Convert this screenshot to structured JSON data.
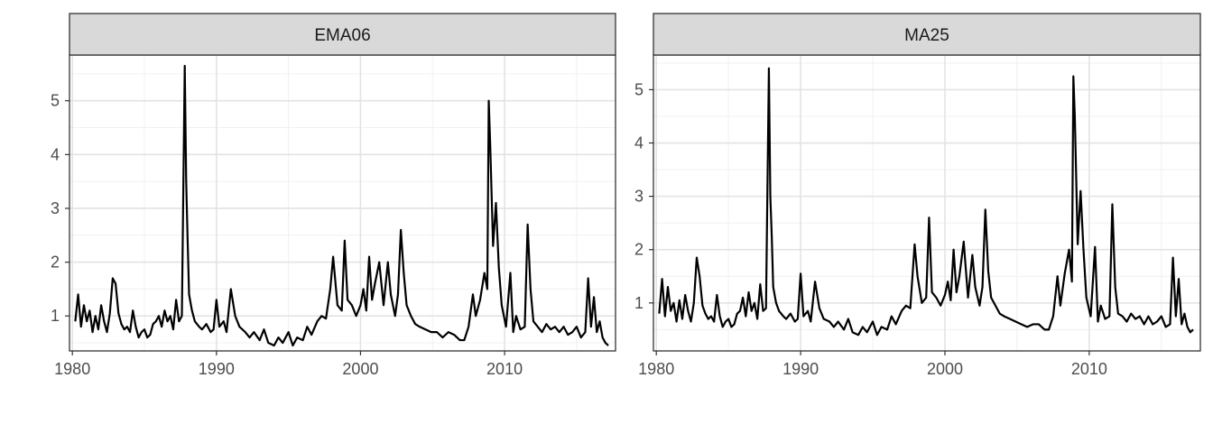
{
  "chart_data": [
    {
      "type": "line",
      "title": "EMA06",
      "xlabel": "",
      "ylabel": "",
      "xlim": [
        1979.8,
        2017.7
      ],
      "ylim": [
        0.35,
        5.85
      ],
      "x_ticks": [
        1980,
        1990,
        2000,
        2010
      ],
      "y_ticks": [
        1,
        2,
        3,
        4,
        5
      ],
      "grid": true,
      "series": [
        {
          "color": "#000000",
          "x": [
            1980.2,
            1980.4,
            1980.6,
            1980.8,
            1981.0,
            1981.2,
            1981.4,
            1981.6,
            1981.8,
            1982.0,
            1982.2,
            1982.4,
            1982.6,
            1982.8,
            1983.0,
            1983.2,
            1983.4,
            1983.6,
            1983.8,
            1984.0,
            1984.2,
            1984.4,
            1984.6,
            1984.8,
            1985.0,
            1985.2,
            1985.4,
            1985.6,
            1985.8,
            1986.0,
            1986.2,
            1986.4,
            1986.6,
            1986.8,
            1987.0,
            1987.2,
            1987.4,
            1987.6,
            1987.8,
            1987.9,
            1988.0,
            1988.1,
            1988.3,
            1988.5,
            1988.8,
            1989.0,
            1989.3,
            1989.6,
            1989.8,
            1990.0,
            1990.2,
            1990.5,
            1990.7,
            1991.0,
            1991.3,
            1991.6,
            1992.0,
            1992.3,
            1992.6,
            1993.0,
            1993.3,
            1993.6,
            1994.0,
            1994.3,
            1994.6,
            1995.0,
            1995.3,
            1995.6,
            1996.0,
            1996.3,
            1996.6,
            1997.0,
            1997.3,
            1997.6,
            1997.9,
            1998.1,
            1998.4,
            1998.7,
            1998.9,
            1999.1,
            1999.4,
            1999.7,
            2000.0,
            2000.2,
            2000.4,
            2000.6,
            2000.8,
            2001.0,
            2001.3,
            2001.6,
            2001.9,
            2002.1,
            2002.4,
            2002.6,
            2002.8,
            2003.0,
            2003.2,
            2003.5,
            2003.8,
            2004.1,
            2004.5,
            2004.9,
            2005.3,
            2005.7,
            2006.1,
            2006.5,
            2006.9,
            2007.2,
            2007.5,
            2007.8,
            2008.0,
            2008.3,
            2008.6,
            2008.8,
            2008.9,
            2009.0,
            2009.2,
            2009.4,
            2009.6,
            2009.8,
            2010.1,
            2010.4,
            2010.6,
            2010.8,
            2011.1,
            2011.4,
            2011.6,
            2011.8,
            2012.0,
            2012.3,
            2012.6,
            2012.9,
            2013.2,
            2013.5,
            2013.8,
            2014.1,
            2014.4,
            2014.7,
            2015.0,
            2015.3,
            2015.6,
            2015.8,
            2016.0,
            2016.2,
            2016.4,
            2016.6,
            2016.8,
            2017.0,
            2017.2
          ],
          "y": [
            0.9,
            1.4,
            0.8,
            1.2,
            0.9,
            1.1,
            0.7,
            1.0,
            0.75,
            1.2,
            0.9,
            0.7,
            1.05,
            1.7,
            1.6,
            1.05,
            0.85,
            0.75,
            0.8,
            0.7,
            1.1,
            0.8,
            0.6,
            0.7,
            0.75,
            0.6,
            0.65,
            0.85,
            0.9,
            1.0,
            0.8,
            1.1,
            0.9,
            1.0,
            0.75,
            1.3,
            0.9,
            1.0,
            5.65,
            3.5,
            2.4,
            1.4,
            1.1,
            0.9,
            0.8,
            0.75,
            0.85,
            0.7,
            0.75,
            1.3,
            0.8,
            0.9,
            0.7,
            1.5,
            1.0,
            0.8,
            0.7,
            0.6,
            0.7,
            0.55,
            0.75,
            0.5,
            0.45,
            0.6,
            0.5,
            0.7,
            0.45,
            0.6,
            0.55,
            0.8,
            0.65,
            0.9,
            1.0,
            0.95,
            1.5,
            2.1,
            1.2,
            1.1,
            2.4,
            1.3,
            1.2,
            1.0,
            1.2,
            1.5,
            1.1,
            2.1,
            1.3,
            1.6,
            2.0,
            1.2,
            2.0,
            1.4,
            1.0,
            1.4,
            2.6,
            1.8,
            1.2,
            1.0,
            0.85,
            0.8,
            0.75,
            0.7,
            0.7,
            0.6,
            0.7,
            0.65,
            0.55,
            0.55,
            0.8,
            1.4,
            1.0,
            1.3,
            1.8,
            1.5,
            5.0,
            4.2,
            2.3,
            3.1,
            1.9,
            1.2,
            0.8,
            1.8,
            0.7,
            1.0,
            0.75,
            0.8,
            2.7,
            1.5,
            0.9,
            0.8,
            0.7,
            0.85,
            0.75,
            0.8,
            0.7,
            0.8,
            0.65,
            0.7,
            0.8,
            0.6,
            0.7,
            1.7,
            0.8,
            1.35,
            0.7,
            0.9,
            0.6,
            0.5,
            0.45
          ]
        }
      ]
    },
    {
      "type": "line",
      "title": "MA25",
      "xlabel": "",
      "ylabel": "",
      "xlim": [
        1979.8,
        2017.7
      ],
      "ylim": [
        0.1,
        5.65
      ],
      "x_ticks": [
        1980,
        1990,
        2000,
        2010
      ],
      "y_ticks": [
        1,
        2,
        3,
        4,
        5
      ],
      "grid": true,
      "series": [
        {
          "color": "#000000",
          "x": [
            1980.2,
            1980.4,
            1980.6,
            1980.8,
            1981.0,
            1981.2,
            1981.4,
            1981.6,
            1981.8,
            1982.0,
            1982.2,
            1982.4,
            1982.6,
            1982.8,
            1983.0,
            1983.2,
            1983.4,
            1983.6,
            1983.8,
            1984.0,
            1984.2,
            1984.4,
            1984.6,
            1984.8,
            1985.0,
            1985.2,
            1985.4,
            1985.6,
            1985.8,
            1986.0,
            1986.2,
            1986.4,
            1986.6,
            1986.8,
            1987.0,
            1987.2,
            1987.4,
            1987.6,
            1987.8,
            1987.9,
            1988.0,
            1988.1,
            1988.3,
            1988.5,
            1988.8,
            1989.0,
            1989.3,
            1989.6,
            1989.8,
            1990.0,
            1990.2,
            1990.5,
            1990.7,
            1991.0,
            1991.3,
            1991.6,
            1992.0,
            1992.3,
            1992.6,
            1993.0,
            1993.3,
            1993.6,
            1994.0,
            1994.3,
            1994.6,
            1995.0,
            1995.3,
            1995.6,
            1996.0,
            1996.3,
            1996.6,
            1997.0,
            1997.3,
            1997.6,
            1997.9,
            1998.1,
            1998.4,
            1998.7,
            1998.9,
            1999.1,
            1999.4,
            1999.7,
            2000.0,
            2000.2,
            2000.4,
            2000.6,
            2000.8,
            2001.0,
            2001.3,
            2001.6,
            2001.9,
            2002.1,
            2002.4,
            2002.6,
            2002.8,
            2003.0,
            2003.2,
            2003.5,
            2003.8,
            2004.1,
            2004.5,
            2004.9,
            2005.3,
            2005.7,
            2006.1,
            2006.5,
            2006.9,
            2007.2,
            2007.5,
            2007.8,
            2008.0,
            2008.3,
            2008.6,
            2008.8,
            2008.9,
            2009.0,
            2009.2,
            2009.4,
            2009.6,
            2009.8,
            2010.1,
            2010.4,
            2010.6,
            2010.8,
            2011.1,
            2011.4,
            2011.6,
            2011.8,
            2012.0,
            2012.3,
            2012.6,
            2012.9,
            2013.2,
            2013.5,
            2013.8,
            2014.1,
            2014.4,
            2014.7,
            2015.0,
            2015.3,
            2015.6,
            2015.8,
            2016.0,
            2016.2,
            2016.4,
            2016.6,
            2016.8,
            2017.0,
            2017.2
          ],
          "y": [
            0.8,
            1.45,
            0.75,
            1.3,
            0.85,
            1.0,
            0.65,
            1.05,
            0.7,
            1.15,
            0.85,
            0.65,
            1.0,
            1.85,
            1.5,
            0.95,
            0.8,
            0.7,
            0.75,
            0.65,
            1.15,
            0.75,
            0.55,
            0.65,
            0.7,
            0.55,
            0.6,
            0.8,
            0.85,
            1.1,
            0.75,
            1.2,
            0.85,
            1.0,
            0.7,
            1.35,
            0.85,
            0.9,
            5.4,
            3.0,
            2.25,
            1.3,
            1.0,
            0.85,
            0.75,
            0.7,
            0.8,
            0.65,
            0.7,
            1.55,
            0.75,
            0.85,
            0.65,
            1.4,
            0.9,
            0.7,
            0.65,
            0.55,
            0.65,
            0.5,
            0.7,
            0.45,
            0.4,
            0.55,
            0.45,
            0.65,
            0.4,
            0.55,
            0.5,
            0.75,
            0.6,
            0.85,
            0.95,
            0.9,
            2.1,
            1.5,
            1.0,
            1.1,
            2.6,
            1.2,
            1.1,
            0.95,
            1.15,
            1.4,
            1.05,
            2.0,
            1.2,
            1.5,
            2.15,
            1.1,
            1.9,
            1.3,
            0.95,
            1.3,
            2.75,
            1.6,
            1.1,
            0.95,
            0.8,
            0.75,
            0.7,
            0.65,
            0.6,
            0.55,
            0.6,
            0.6,
            0.5,
            0.5,
            0.75,
            1.5,
            0.95,
            1.55,
            2.0,
            1.4,
            5.25,
            4.5,
            2.1,
            3.1,
            2.0,
            1.1,
            0.75,
            2.05,
            0.65,
            0.95,
            0.7,
            0.75,
            2.85,
            1.3,
            0.8,
            0.75,
            0.65,
            0.8,
            0.7,
            0.75,
            0.6,
            0.75,
            0.6,
            0.65,
            0.75,
            0.55,
            0.6,
            1.85,
            0.75,
            1.45,
            0.6,
            0.8,
            0.55,
            0.45,
            0.5
          ]
        }
      ]
    }
  ]
}
